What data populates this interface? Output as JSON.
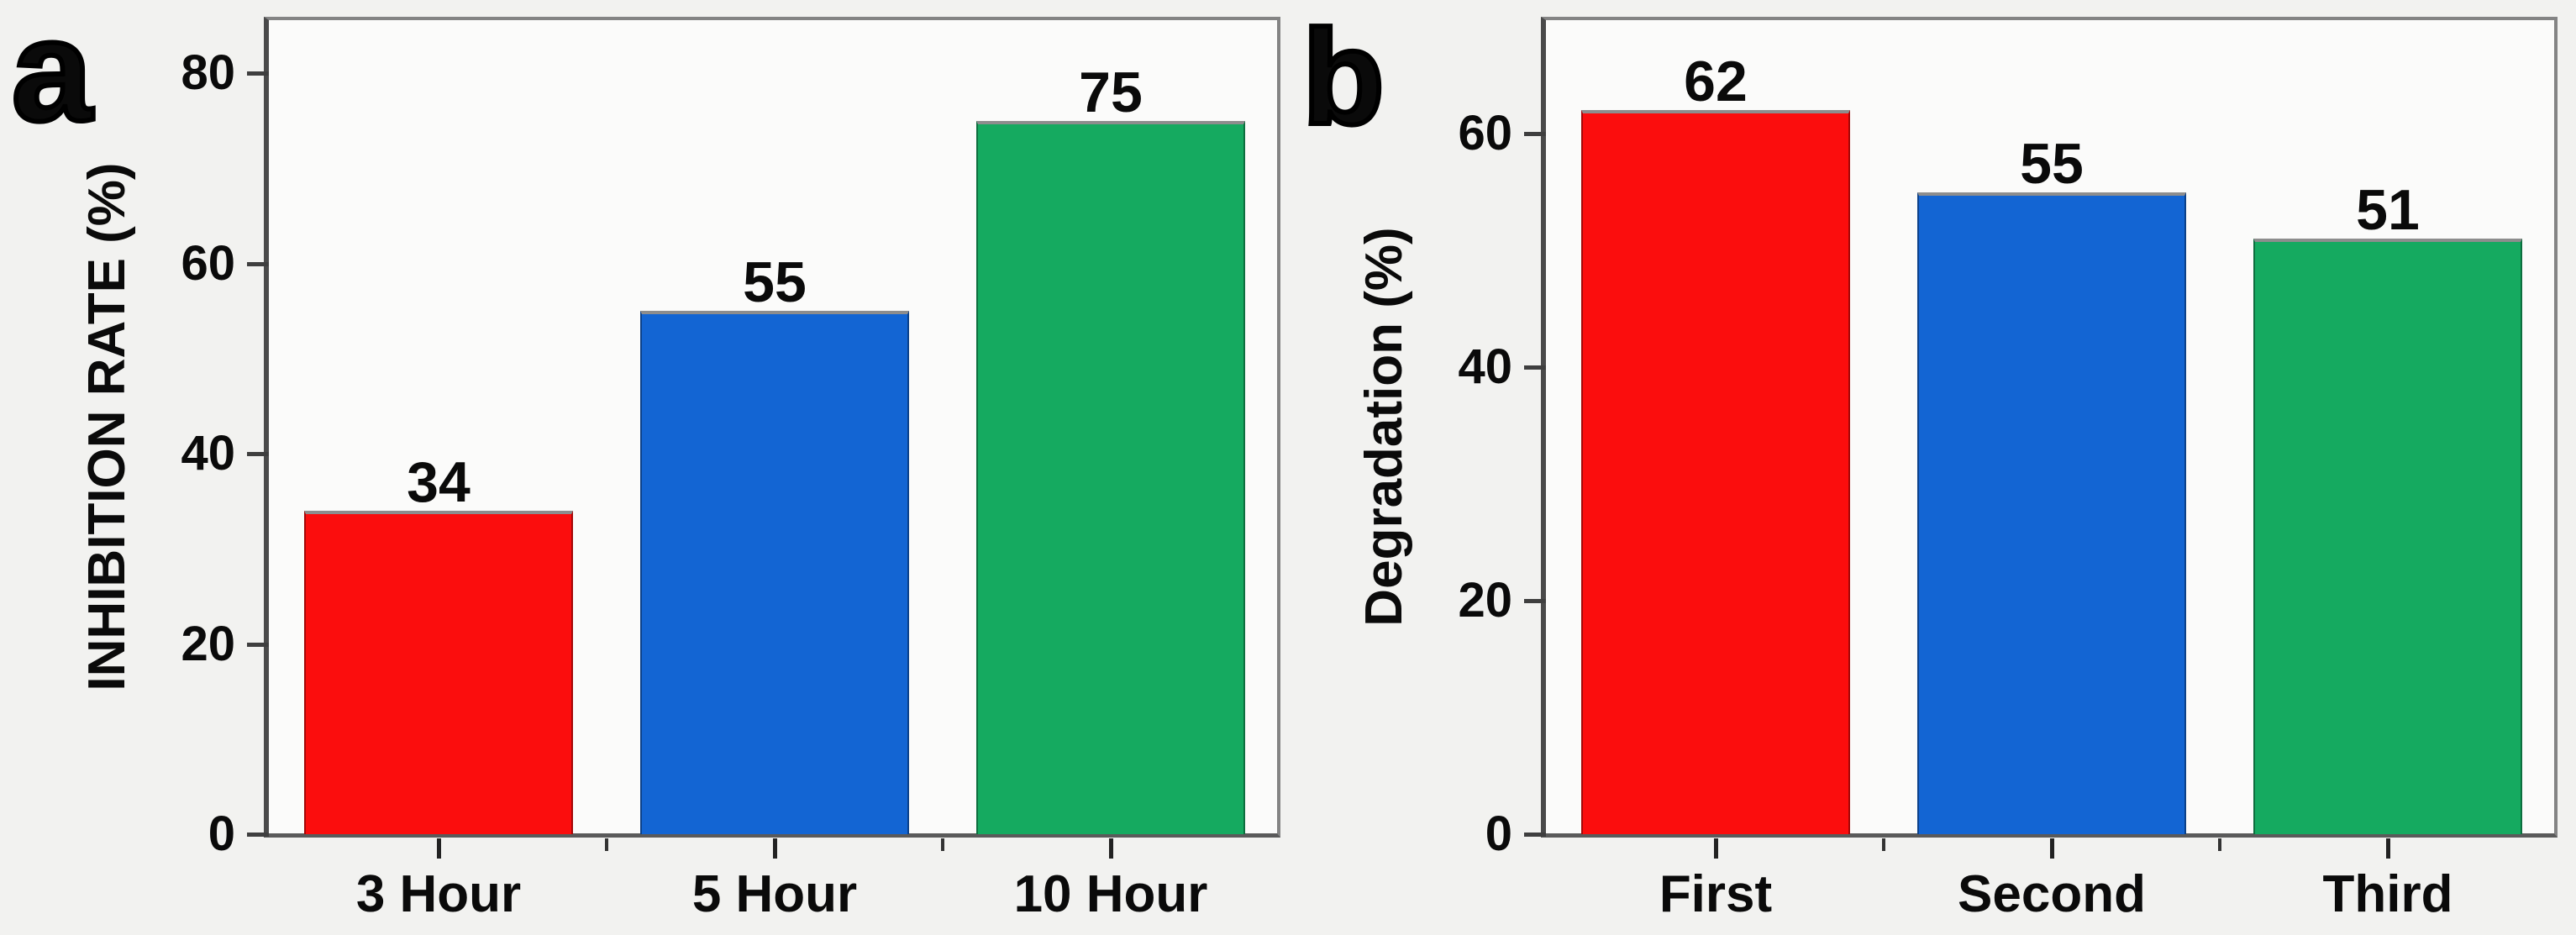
{
  "figure_background": "#f2f2f0",
  "plot_background": "#fbfbfa",
  "axis_color": "#4a4a4a",
  "box_border_color": "#848484",
  "chart_data": [
    {
      "type": "bar",
      "panel_letter": "a",
      "title": "",
      "xlabel": "",
      "ylabel": "INHIBITION RATE (%)",
      "categories": [
        "3 Hour",
        "5 Hour",
        "10 Hour"
      ],
      "values": [
        34,
        55,
        75
      ],
      "value_labels": [
        "34",
        "55",
        "75"
      ],
      "bar_colors": [
        "#fb0d0d",
        "#1365d3",
        "#15aa60"
      ],
      "yticks": [
        0,
        20,
        40,
        60,
        80
      ],
      "ylim": [
        0,
        85.6
      ],
      "grid": "off",
      "legend": "none"
    },
    {
      "type": "bar",
      "panel_letter": "b",
      "title": "",
      "xlabel": "",
      "ylabel": "Degradation (%)",
      "categories": [
        "First",
        "Second",
        "Third"
      ],
      "values": [
        62,
        55,
        51
      ],
      "value_labels": [
        "62",
        "55",
        "51"
      ],
      "bar_colors": [
        "#fb0d0d",
        "#1365d3",
        "#15aa60"
      ],
      "yticks": [
        0,
        20,
        40,
        60
      ],
      "ylim": [
        0,
        69.7
      ],
      "grid": "off",
      "legend": "none"
    }
  ]
}
